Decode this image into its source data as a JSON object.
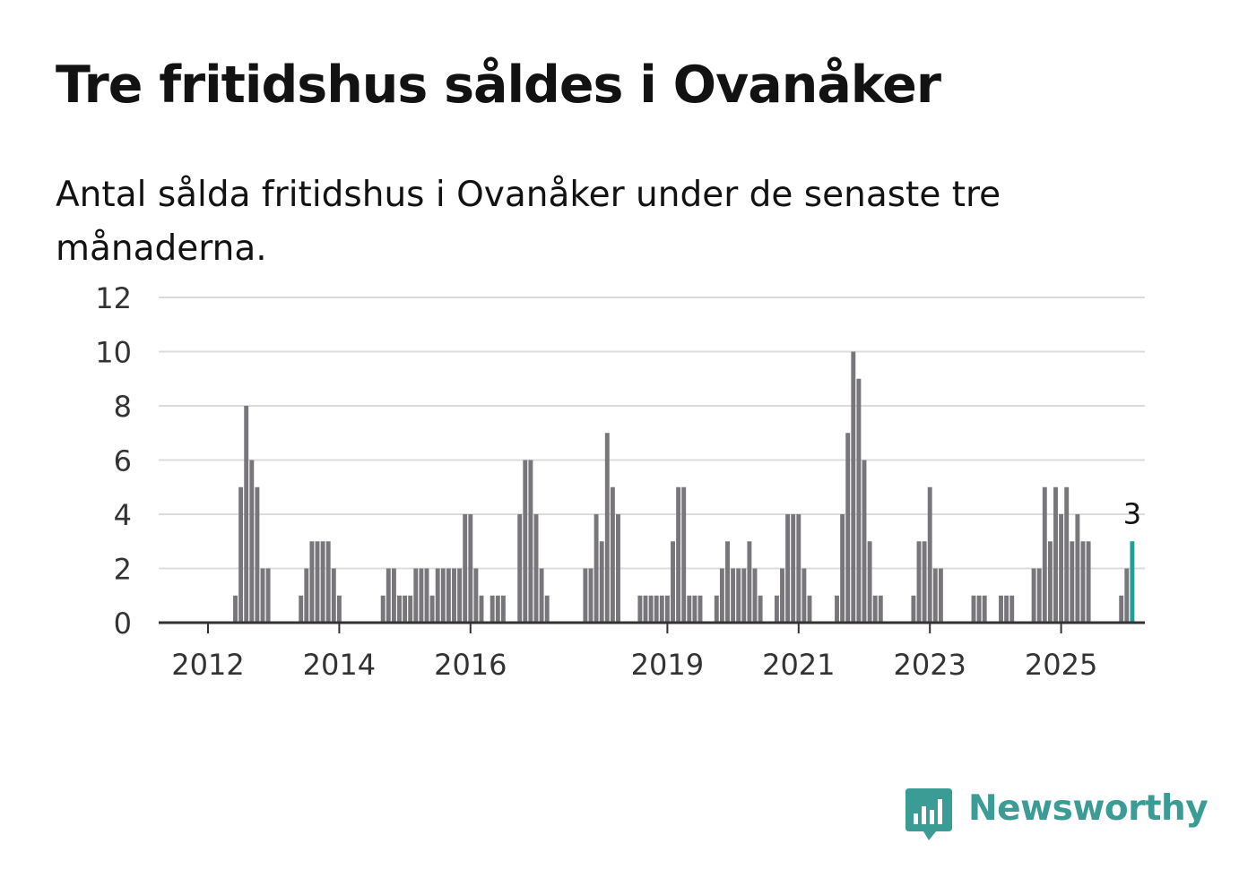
{
  "title": "Tre fritidshus såldes i Ovanåker",
  "subtitle": "Antal sålda fritidshus i Ovanåker under de senaste tre månaderna.",
  "brand": {
    "name": "Newsworthy",
    "icon": "bar-chart-speech-bubble-icon",
    "color": "#3a9c95"
  },
  "chart_data": {
    "type": "bar",
    "start": "2011-11",
    "frequency": "monthly",
    "ylim": [
      0,
      12
    ],
    "yticks": [
      0,
      2,
      4,
      6,
      8,
      10,
      12
    ],
    "xtick_labels": [
      "2012",
      "2014",
      "2016",
      "2019",
      "2021",
      "2023",
      "2025"
    ],
    "xtick_months": [
      "2012-01",
      "2014-01",
      "2016-01",
      "2019-01",
      "2021-01",
      "2023-01",
      "2025-01"
    ],
    "grid": true,
    "bar_color": "#78767b",
    "highlight_color": "#1f9f97",
    "highlight_label": "3",
    "values": [
      0,
      0,
      0,
      0,
      0,
      0,
      0,
      1,
      5,
      8,
      6,
      5,
      2,
      2,
      0,
      0,
      0,
      0,
      0,
      1,
      2,
      3,
      3,
      3,
      3,
      2,
      1,
      0,
      0,
      0,
      0,
      0,
      0,
      0,
      1,
      2,
      2,
      1,
      1,
      1,
      2,
      2,
      2,
      1,
      2,
      2,
      2,
      2,
      2,
      4,
      4,
      2,
      1,
      0,
      1,
      1,
      1,
      0,
      0,
      4,
      6,
      6,
      4,
      2,
      1,
      0,
      0,
      0,
      0,
      0,
      0,
      2,
      2,
      4,
      3,
      7,
      5,
      4,
      0,
      0,
      0,
      1,
      1,
      1,
      1,
      1,
      1,
      3,
      5,
      5,
      1,
      1,
      1,
      0,
      0,
      1,
      2,
      3,
      2,
      2,
      2,
      3,
      2,
      1,
      0,
      0,
      1,
      2,
      4,
      4,
      4,
      2,
      1,
      0,
      0,
      0,
      0,
      1,
      4,
      7,
      10,
      9,
      6,
      3,
      1,
      1,
      0,
      0,
      0,
      0,
      0,
      1,
      3,
      3,
      5,
      2,
      2,
      0,
      0,
      0,
      0,
      0,
      1,
      1,
      1,
      0,
      0,
      1,
      1,
      1,
      0,
      0,
      0,
      2,
      2,
      5,
      3,
      5,
      4,
      5,
      3,
      4,
      3,
      3,
      0,
      0,
      0,
      0,
      0,
      1,
      2,
      3
    ]
  }
}
